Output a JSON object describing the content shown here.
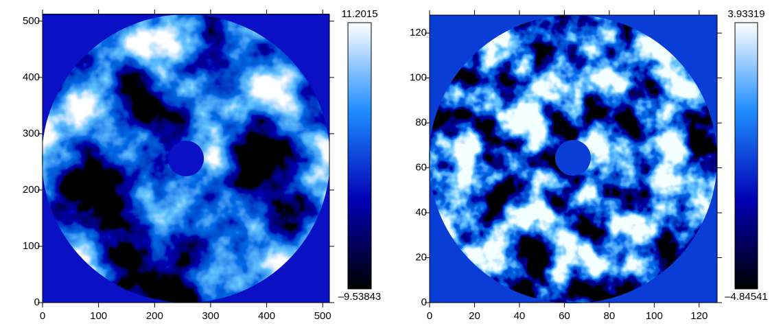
{
  "chart_data": [
    {
      "type": "heatmap",
      "xlim": [
        0,
        512
      ],
      "ylim": [
        0,
        512
      ],
      "xticks": [
        0,
        100,
        200,
        300,
        400,
        500
      ],
      "yticks": [
        0,
        100,
        200,
        300,
        400,
        500
      ],
      "clim": [
        -9.53843,
        11.2015
      ],
      "cticks": [
        {
          "value": -9.53843,
          "label": "–9.53843"
        },
        11.2015
      ],
      "colormap": [
        "#000000",
        "#0000b4",
        "#1e8cff",
        "#ffffff"
      ],
      "background": "#0a10c4"
    },
    {
      "type": "heatmap",
      "xlim": [
        0,
        128
      ],
      "ylim": [
        0,
        128
      ],
      "xticks": [
        0,
        20,
        40,
        60,
        80,
        100,
        120
      ],
      "yticks": [
        0,
        20,
        40,
        60,
        80,
        100,
        120
      ],
      "clim": [
        -4.84541,
        3.93319
      ],
      "cticks": [
        {
          "value": -4.84541,
          "label": "–4.84541"
        },
        3.93319
      ],
      "colormap": [
        "#000000",
        "#0000b4",
        "#1e8cff",
        "#ffffff"
      ],
      "background": "#0a3cd6"
    }
  ]
}
